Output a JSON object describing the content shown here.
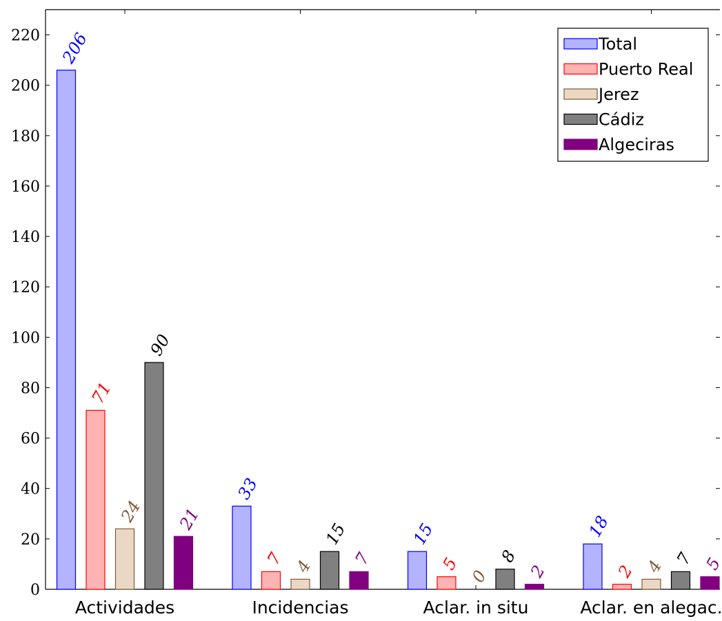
{
  "chart_data": {
    "type": "bar",
    "categories": [
      "Actividades",
      "Incidencias",
      "Aclar. in situ",
      "Aclar. en alegac."
    ],
    "series": [
      {
        "name": "Total",
        "values": [
          206,
          33,
          15,
          18
        ],
        "fill": "#b3b3ff",
        "stroke": "#0000ff",
        "label_color": "#0000ff"
      },
      {
        "name": "Puerto Real",
        "values": [
          71,
          7,
          5,
          2
        ],
        "fill": "#ffb3b3",
        "stroke": "#ff0000",
        "label_color": "#ff0000"
      },
      {
        "name": "Jerez",
        "values": [
          24,
          4,
          0,
          4
        ],
        "fill": "#ead8c4",
        "stroke": "#7f5a37",
        "label_color": "#7f5a37"
      },
      {
        "name": "Cádiz",
        "values": [
          90,
          15,
          8,
          7
        ],
        "fill": "#808080",
        "stroke": "#000000",
        "label_color": "#000000"
      },
      {
        "name": "Algeciras",
        "values": [
          21,
          7,
          2,
          5
        ],
        "fill": "#800080",
        "stroke": "#800080",
        "label_color": "#800080"
      }
    ],
    "ylim": [
      0,
      230
    ],
    "yticks": [
      0,
      20,
      40,
      60,
      80,
      100,
      120,
      140,
      160,
      180,
      200,
      220
    ],
    "xlabel": "",
    "ylabel": "",
    "title": "",
    "grid": false,
    "legend_position": "top-right"
  }
}
